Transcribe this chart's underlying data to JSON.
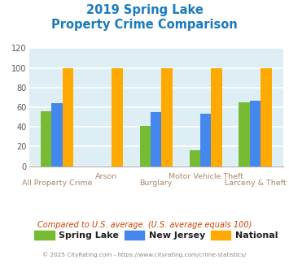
{
  "title_line1": "2019 Spring Lake",
  "title_line2": "Property Crime Comparison",
  "title_color": "#1a7abf",
  "categories": [
    "All Property Crime",
    "Arson",
    "Burglary",
    "Motor Vehicle Theft",
    "Larceny & Theft"
  ],
  "spring_lake": [
    56,
    0,
    41,
    16,
    65
  ],
  "new_jersey": [
    64,
    0,
    55,
    53,
    67
  ],
  "national": [
    100,
    100,
    100,
    100,
    100
  ],
  "bar_colors": {
    "spring_lake": "#77bb33",
    "new_jersey": "#4488ee",
    "national": "#ffaa00"
  },
  "ylim": [
    0,
    120
  ],
  "yticks": [
    0,
    20,
    40,
    60,
    80,
    100,
    120
  ],
  "xlabel_color": "#aa8866",
  "background_color": "#ddeef5",
  "grid_color": "#ffffff",
  "legend_labels": [
    "Spring Lake",
    "New Jersey",
    "National"
  ],
  "footer_text": "Compared to U.S. average. (U.S. average equals 100)",
  "footer_color": "#cc4400",
  "copyright_text": "© 2025 CityRating.com - https://www.cityrating.com/crime-statistics/",
  "copyright_color": "#888888",
  "bar_width": 0.22
}
